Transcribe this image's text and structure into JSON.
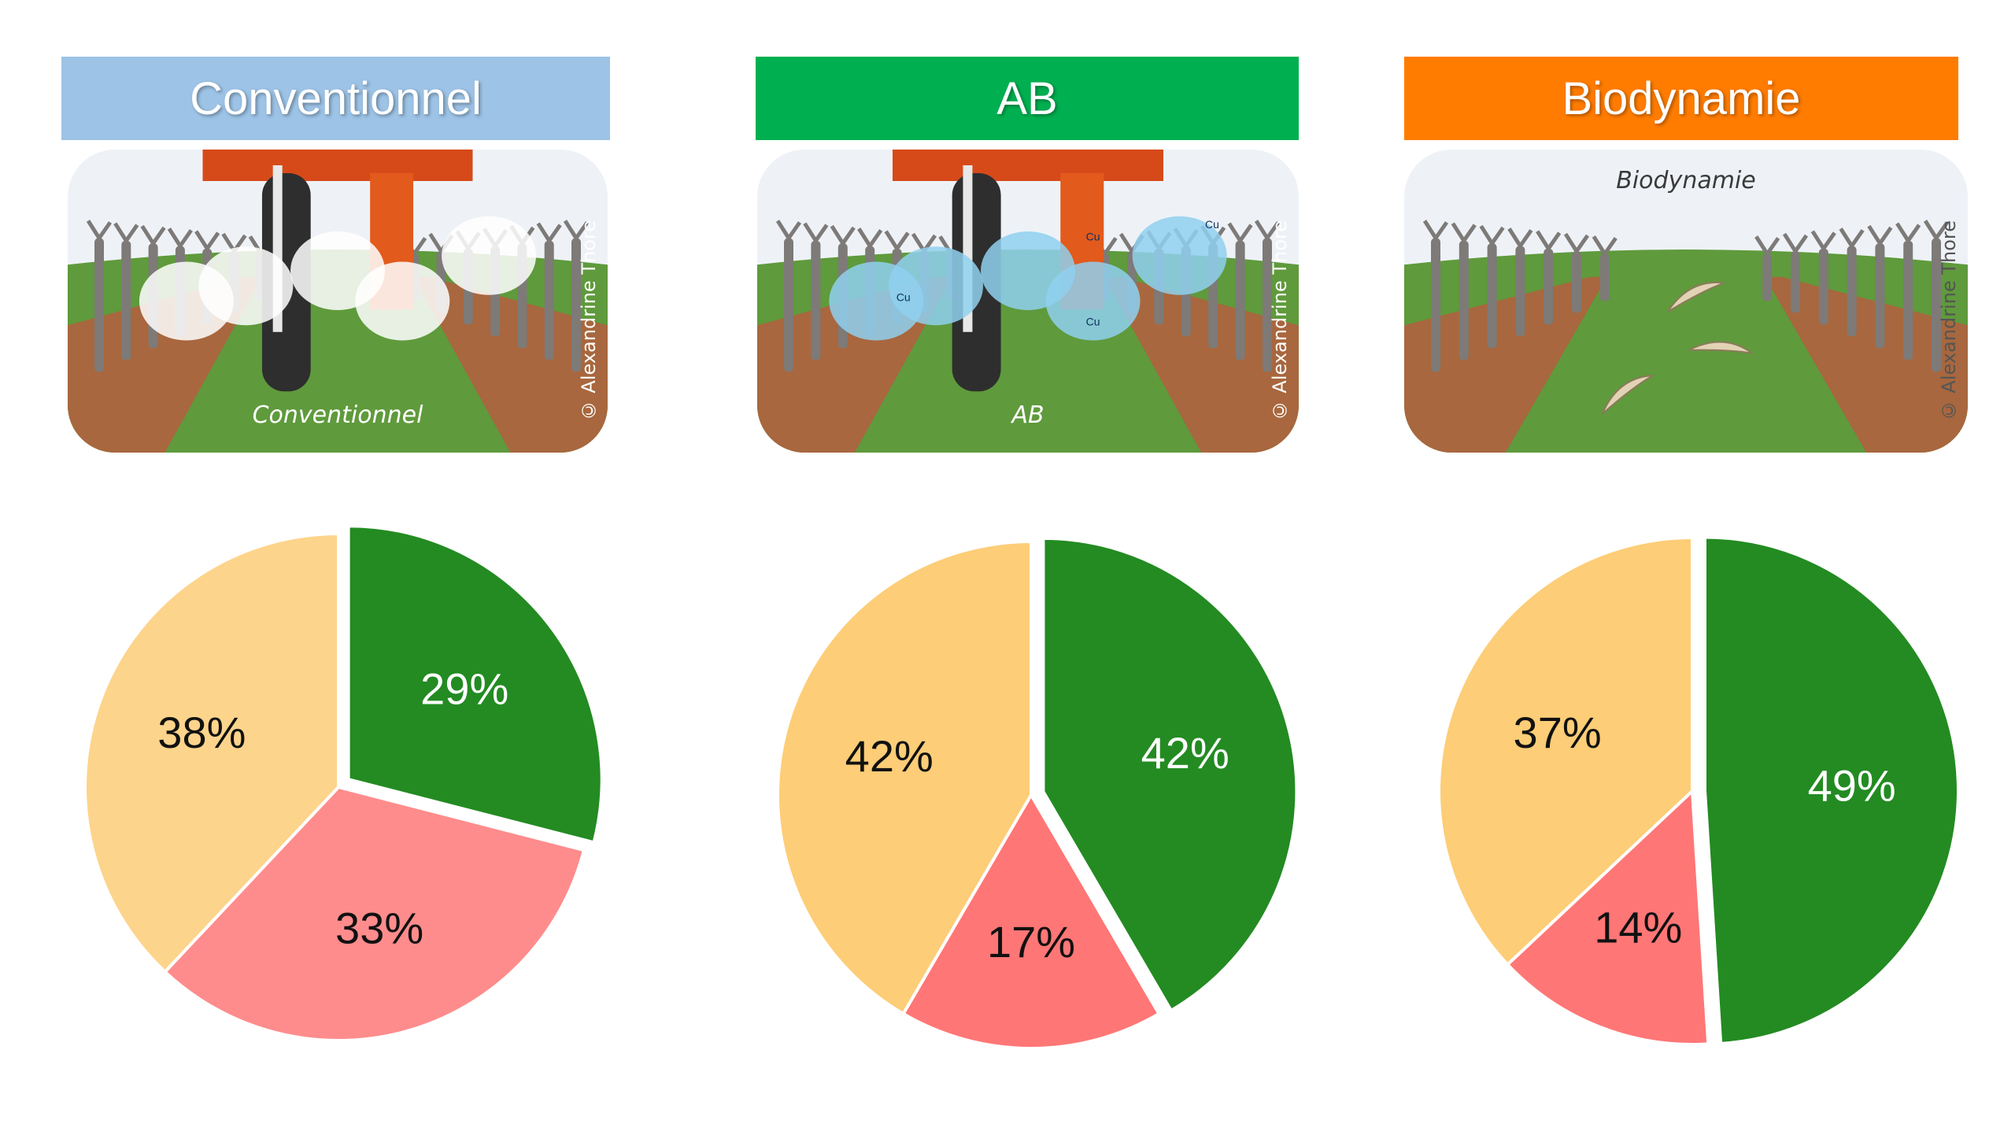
{
  "panels": [
    {
      "title": "Conventionnel",
      "header_color": "#9dc3e6",
      "illustration_caption": "Conventionnel",
      "credit": "© Alexandrine Thore",
      "spray": "white",
      "spray_labels": []
    },
    {
      "title": "AB",
      "header_color": "#00b050",
      "illustration_caption": "AB",
      "credit": "© Alexandrine Thore",
      "spray": "blue",
      "spray_labels": [
        "Cu",
        "Cu",
        "Cu",
        "Cu"
      ]
    },
    {
      "title": "Biodynamie",
      "header_color": "#ff7c00",
      "illustration_caption": "Biodynamie",
      "credit": "© Alexandrine Thore",
      "spray": "none",
      "spray_labels": []
    }
  ],
  "colors": {
    "green": "#238b22",
    "red": "#ff8a8a",
    "yellow": "#fdd38a"
  },
  "chart_data": [
    {
      "type": "pie",
      "slices": [
        {
          "label": "29%",
          "value": 29,
          "color": "#238b22",
          "exploded": true
        },
        {
          "label": "33%",
          "value": 33,
          "color": "#ff8c8c",
          "exploded": false
        },
        {
          "label": "38%",
          "value": 38,
          "color": "#fdd48b",
          "exploded": false
        }
      ]
    },
    {
      "type": "pie",
      "slices": [
        {
          "label": "42%",
          "value": 42,
          "color": "#238b22",
          "exploded": true
        },
        {
          "label": "17%",
          "value": 17,
          "color": "#ff7676",
          "exploded": false
        },
        {
          "label": "42%",
          "value": 42,
          "color": "#fdcd77",
          "exploded": false
        }
      ]
    },
    {
      "type": "pie",
      "slices": [
        {
          "label": "49%",
          "value": 49,
          "color": "#238b22",
          "exploded": true
        },
        {
          "label": "14%",
          "value": 14,
          "color": "#ff7676",
          "exploded": false
        },
        {
          "label": "37%",
          "value": 37,
          "color": "#fdcd77",
          "exploded": false
        }
      ]
    }
  ]
}
